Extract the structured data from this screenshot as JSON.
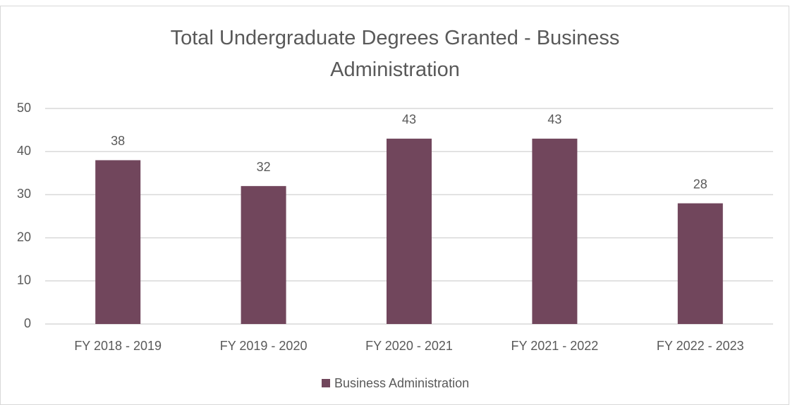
{
  "chart_data": {
    "type": "bar",
    "title": "Total Undergraduate Degrees Granted - Business Administration",
    "categories": [
      "FY 2018 - 2019",
      "FY 2019 - 2020",
      "FY 2020 - 2021",
      "FY 2021 - 2022",
      "FY 2022 - 2023"
    ],
    "series": [
      {
        "name": "Business Administration",
        "color": "#71465c",
        "values": [
          38,
          32,
          43,
          43,
          28
        ]
      }
    ],
    "ylim": [
      0,
      50
    ],
    "yticks": [
      0,
      10,
      20,
      30,
      40,
      50
    ],
    "grid": true,
    "legend": "bottom"
  }
}
